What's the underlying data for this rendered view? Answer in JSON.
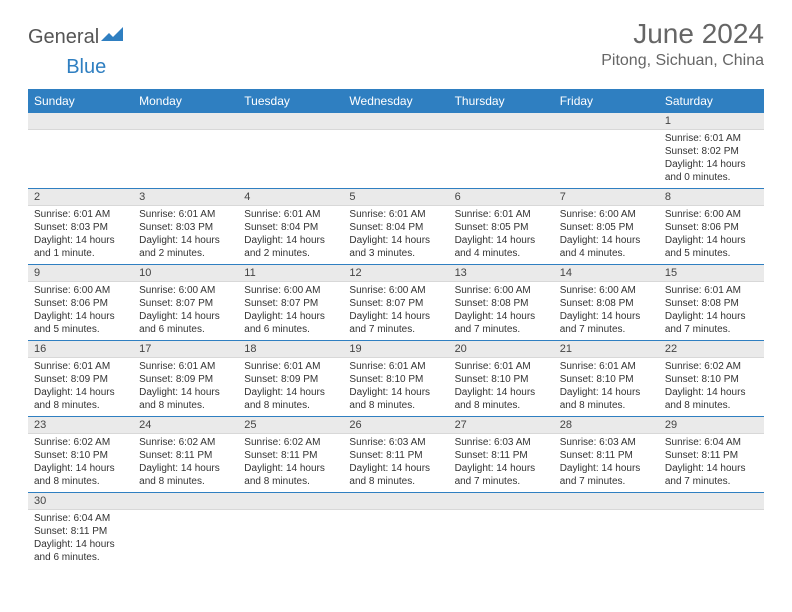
{
  "logo": {
    "general": "General",
    "blue": "Blue"
  },
  "title": "June 2024",
  "location": "Pitong, Sichuan, China",
  "colors": {
    "header_bg": "#2f7fc1",
    "header_text": "#ffffff",
    "daynum_bg": "#eaeaea",
    "border": "#2f7fc1",
    "text": "#333333",
    "logo_gray": "#555555",
    "logo_blue": "#2f7fc1"
  },
  "weekdays": [
    "Sunday",
    "Monday",
    "Tuesday",
    "Wednesday",
    "Thursday",
    "Friday",
    "Saturday"
  ],
  "weeks": [
    [
      null,
      null,
      null,
      null,
      null,
      null,
      {
        "n": "1",
        "sr": "6:01 AM",
        "ss": "8:02 PM",
        "dl": "14 hours and 0 minutes."
      }
    ],
    [
      {
        "n": "2",
        "sr": "6:01 AM",
        "ss": "8:03 PM",
        "dl": "14 hours and 1 minute."
      },
      {
        "n": "3",
        "sr": "6:01 AM",
        "ss": "8:03 PM",
        "dl": "14 hours and 2 minutes."
      },
      {
        "n": "4",
        "sr": "6:01 AM",
        "ss": "8:04 PM",
        "dl": "14 hours and 2 minutes."
      },
      {
        "n": "5",
        "sr": "6:01 AM",
        "ss": "8:04 PM",
        "dl": "14 hours and 3 minutes."
      },
      {
        "n": "6",
        "sr": "6:01 AM",
        "ss": "8:05 PM",
        "dl": "14 hours and 4 minutes."
      },
      {
        "n": "7",
        "sr": "6:00 AM",
        "ss": "8:05 PM",
        "dl": "14 hours and 4 minutes."
      },
      {
        "n": "8",
        "sr": "6:00 AM",
        "ss": "8:06 PM",
        "dl": "14 hours and 5 minutes."
      }
    ],
    [
      {
        "n": "9",
        "sr": "6:00 AM",
        "ss": "8:06 PM",
        "dl": "14 hours and 5 minutes."
      },
      {
        "n": "10",
        "sr": "6:00 AM",
        "ss": "8:07 PM",
        "dl": "14 hours and 6 minutes."
      },
      {
        "n": "11",
        "sr": "6:00 AM",
        "ss": "8:07 PM",
        "dl": "14 hours and 6 minutes."
      },
      {
        "n": "12",
        "sr": "6:00 AM",
        "ss": "8:07 PM",
        "dl": "14 hours and 7 minutes."
      },
      {
        "n": "13",
        "sr": "6:00 AM",
        "ss": "8:08 PM",
        "dl": "14 hours and 7 minutes."
      },
      {
        "n": "14",
        "sr": "6:00 AM",
        "ss": "8:08 PM",
        "dl": "14 hours and 7 minutes."
      },
      {
        "n": "15",
        "sr": "6:01 AM",
        "ss": "8:08 PM",
        "dl": "14 hours and 7 minutes."
      }
    ],
    [
      {
        "n": "16",
        "sr": "6:01 AM",
        "ss": "8:09 PM",
        "dl": "14 hours and 8 minutes."
      },
      {
        "n": "17",
        "sr": "6:01 AM",
        "ss": "8:09 PM",
        "dl": "14 hours and 8 minutes."
      },
      {
        "n": "18",
        "sr": "6:01 AM",
        "ss": "8:09 PM",
        "dl": "14 hours and 8 minutes."
      },
      {
        "n": "19",
        "sr": "6:01 AM",
        "ss": "8:10 PM",
        "dl": "14 hours and 8 minutes."
      },
      {
        "n": "20",
        "sr": "6:01 AM",
        "ss": "8:10 PM",
        "dl": "14 hours and 8 minutes."
      },
      {
        "n": "21",
        "sr": "6:01 AM",
        "ss": "8:10 PM",
        "dl": "14 hours and 8 minutes."
      },
      {
        "n": "22",
        "sr": "6:02 AM",
        "ss": "8:10 PM",
        "dl": "14 hours and 8 minutes."
      }
    ],
    [
      {
        "n": "23",
        "sr": "6:02 AM",
        "ss": "8:10 PM",
        "dl": "14 hours and 8 minutes."
      },
      {
        "n": "24",
        "sr": "6:02 AM",
        "ss": "8:11 PM",
        "dl": "14 hours and 8 minutes."
      },
      {
        "n": "25",
        "sr": "6:02 AM",
        "ss": "8:11 PM",
        "dl": "14 hours and 8 minutes."
      },
      {
        "n": "26",
        "sr": "6:03 AM",
        "ss": "8:11 PM",
        "dl": "14 hours and 8 minutes."
      },
      {
        "n": "27",
        "sr": "6:03 AM",
        "ss": "8:11 PM",
        "dl": "14 hours and 7 minutes."
      },
      {
        "n": "28",
        "sr": "6:03 AM",
        "ss": "8:11 PM",
        "dl": "14 hours and 7 minutes."
      },
      {
        "n": "29",
        "sr": "6:04 AM",
        "ss": "8:11 PM",
        "dl": "14 hours and 7 minutes."
      }
    ],
    [
      {
        "n": "30",
        "sr": "6:04 AM",
        "ss": "8:11 PM",
        "dl": "14 hours and 6 minutes."
      },
      null,
      null,
      null,
      null,
      null,
      null
    ]
  ],
  "labels": {
    "sunrise": "Sunrise:",
    "sunset": "Sunset:",
    "daylight": "Daylight:"
  }
}
